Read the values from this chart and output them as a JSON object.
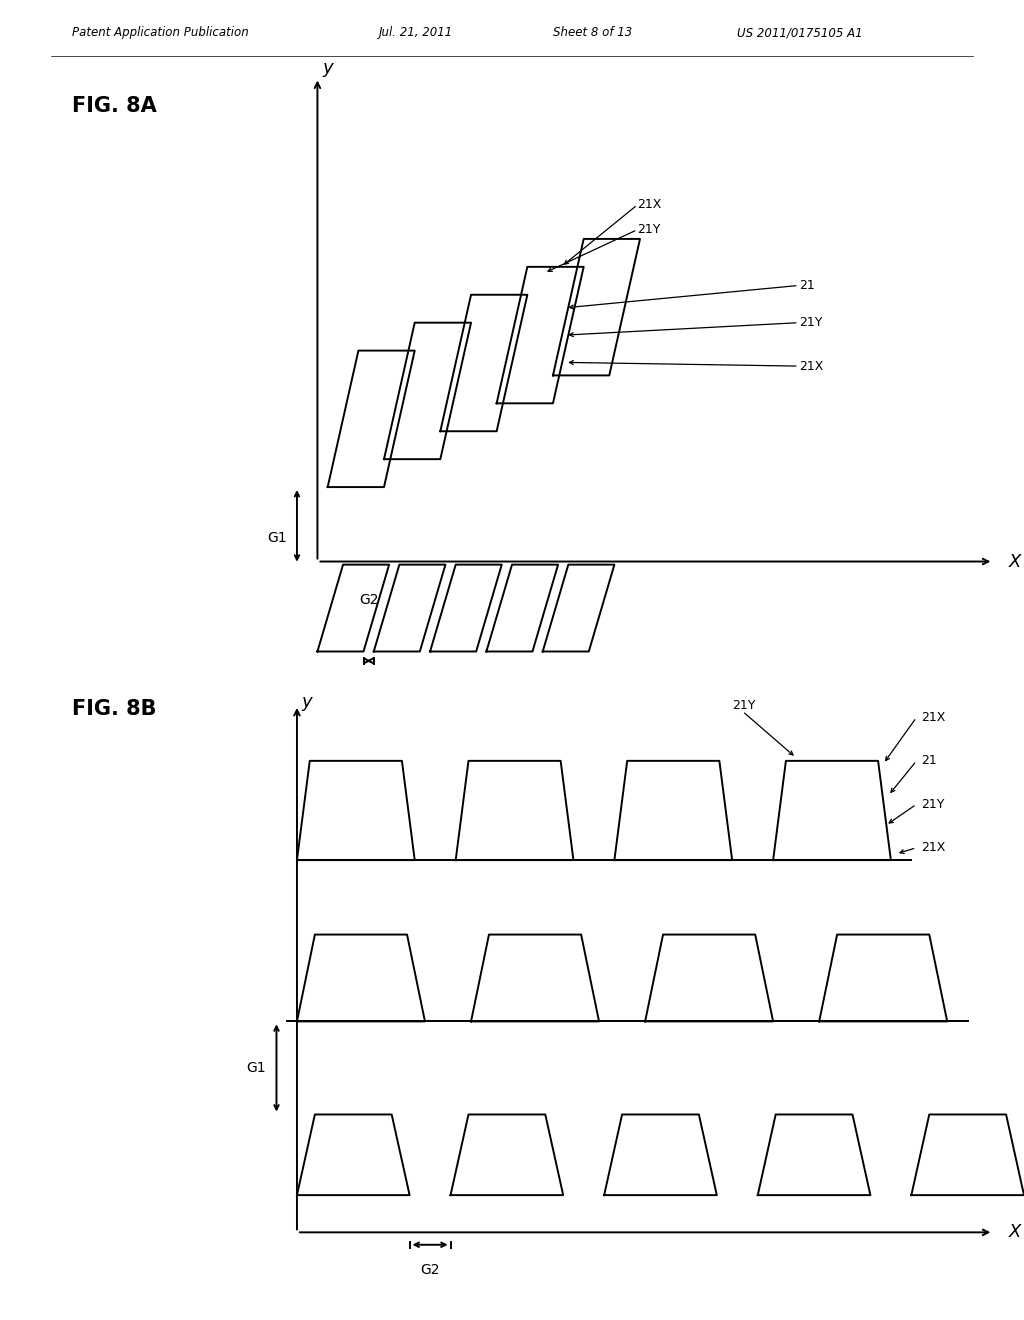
{
  "background_color": "#ffffff",
  "header_text": "Patent Application Publication",
  "header_date": "Jul. 21, 2011",
  "header_sheet": "Sheet 8 of 13",
  "header_patent": "US 2011/0175105 A1",
  "fig8a_label": "FIG. 8A",
  "fig8b_label": "FIG. 8B",
  "line_color": "#000000",
  "line_width": 1.4
}
